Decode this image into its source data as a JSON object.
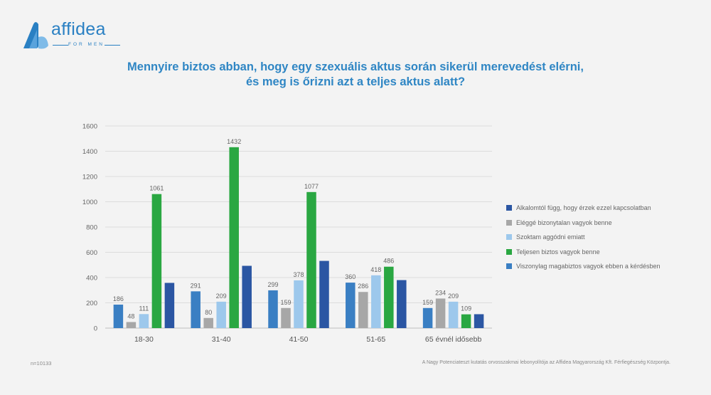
{
  "logo": {
    "text": "affidea",
    "subtext": "FOR MEN"
  },
  "footer": {
    "sample": "n=10133",
    "source": "A Nagy Potenciateszt kutatás orvosszakmai lebonyolítója az Affidea Magyarország Kft. Férfiegészség Központja."
  },
  "colors": {
    "accent": "#2f86c4",
    "series": [
      "#3a7fc3",
      "#a7a7a7",
      "#9dc8ec",
      "#2aa742",
      "#2b56a3"
    ]
  },
  "chart_data": {
    "type": "bar",
    "title": "Mennyire biztos abban, hogy egy szexuális aktus során sikerül merevedést elérni, és meg is őrizni azt a teljes aktus alatt?",
    "title_lines": [
      "Mennyire biztos abban, hogy egy szexuális aktus során sikerül merevedést elérni,",
      "és meg is őrizni azt a teljes aktus alatt?"
    ],
    "categories": [
      "18-30",
      "31-40",
      "41-50",
      "51-65",
      "65 évnél idősebb"
    ],
    "ylim": [
      0,
      1600
    ],
    "yticks": [
      0,
      200,
      400,
      600,
      800,
      1000,
      1200,
      1400,
      1600
    ],
    "grid": true,
    "legend_position": "right",
    "legend_order": [
      4,
      1,
      2,
      3,
      0
    ],
    "series": [
      {
        "name": "Viszonylag magabiztos vagyok ebben a kérdésben",
        "values": [
          186,
          291,
          299,
          360,
          159
        ],
        "labeled": true
      },
      {
        "name": "Eléggé bizonytalan vagyok benne",
        "values": [
          48,
          80,
          159,
          286,
          234
        ],
        "labeled": true
      },
      {
        "name": "Szoktam aggódni emiatt",
        "values": [
          111,
          209,
          378,
          418,
          209
        ],
        "labeled": true
      },
      {
        "name": "Teljesen biztos vagyok benne",
        "values": [
          1061,
          1432,
          1077,
          486,
          109
        ],
        "labeled": true
      },
      {
        "name": "Alkalomtól függ, hogy érzek ezzel kapcsolatban",
        "values": [
          358,
          493,
          532,
          380,
          110
        ],
        "labeled": false
      }
    ]
  }
}
